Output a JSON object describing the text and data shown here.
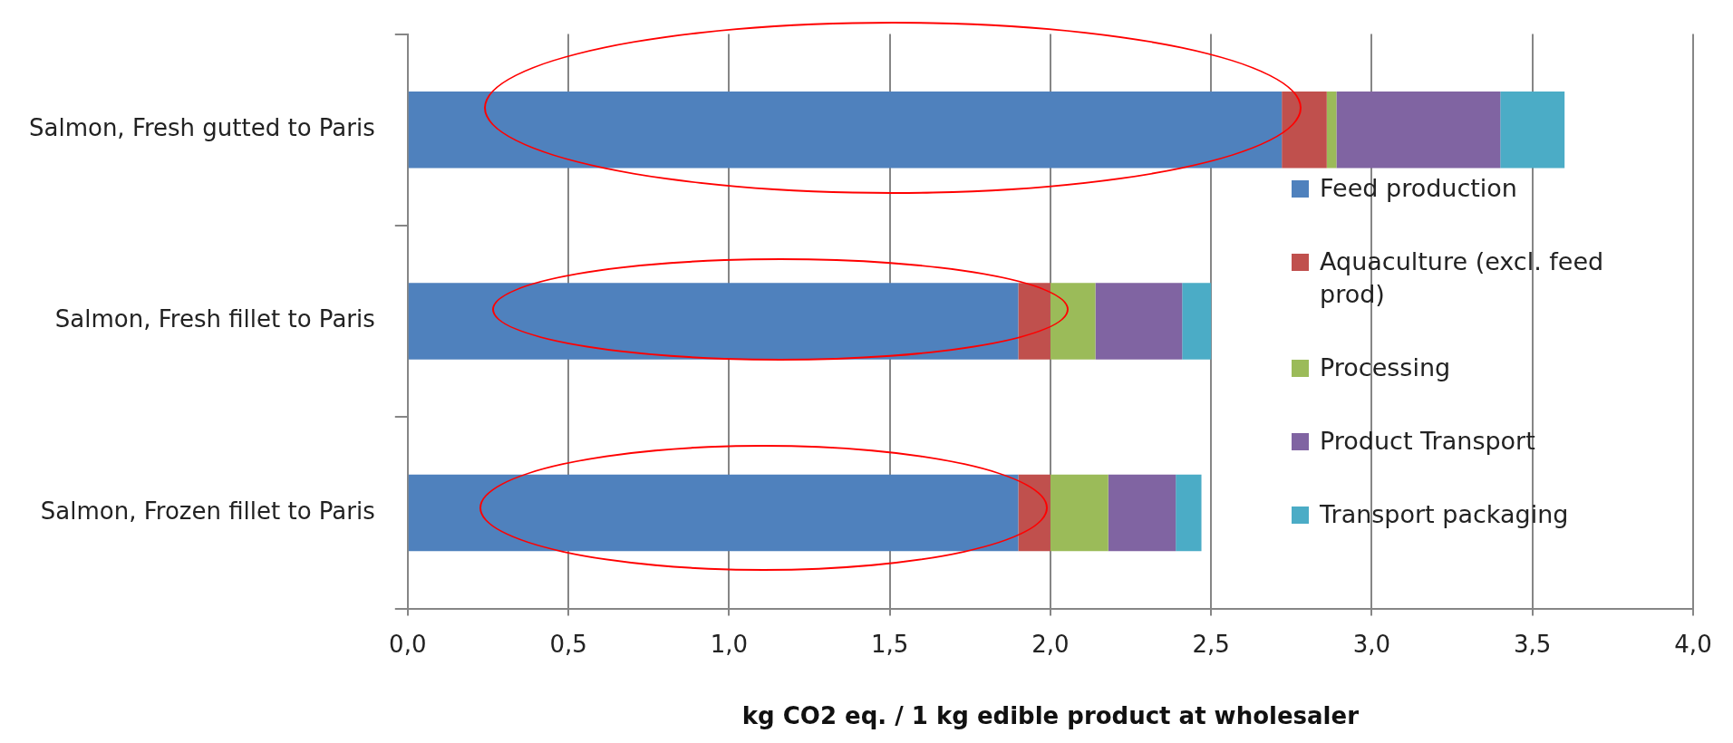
{
  "chart_data": {
    "type": "bar",
    "orientation": "horizontal",
    "stacked": true,
    "xlabel": "kg CO2 eq. / 1 kg edible product at wholesaler",
    "categories": [
      "Salmon, Fresh gutted to Paris",
      "Salmon, Fresh fillet to Paris",
      "Salmon, Frozen fillet to Paris"
    ],
    "series": [
      {
        "name": "Feed production",
        "color": "#4f81bd",
        "values": [
          2.72,
          1.9,
          1.9
        ]
      },
      {
        "name": "Aquaculture (excl. feed prod)",
        "color": "#c0504d",
        "values": [
          0.14,
          0.1,
          0.1
        ]
      },
      {
        "name": "Processing",
        "color": "#9bbb59",
        "values": [
          0.03,
          0.14,
          0.18
        ]
      },
      {
        "name": "Product Transport",
        "color": "#8064a2",
        "values": [
          0.51,
          0.27,
          0.21
        ]
      },
      {
        "name": "Transport packaging",
        "color": "#4bacc6",
        "values": [
          0.2,
          0.09,
          0.08
        ]
      }
    ],
    "xlim": [
      0,
      4
    ],
    "xticks": [
      {
        "value": 0,
        "label": "0,0"
      },
      {
        "value": 0.5,
        "label": "0,5"
      },
      {
        "value": 1,
        "label": "1,0"
      },
      {
        "value": 1.5,
        "label": "1,5"
      },
      {
        "value": 2,
        "label": "2,0"
      },
      {
        "value": 2.5,
        "label": "2,5"
      },
      {
        "value": 3,
        "label": "3,0"
      },
      {
        "value": 3.5,
        "label": "3,5"
      },
      {
        "value": 4,
        "label": "4,0"
      }
    ],
    "grid": "x",
    "legend": "right"
  }
}
